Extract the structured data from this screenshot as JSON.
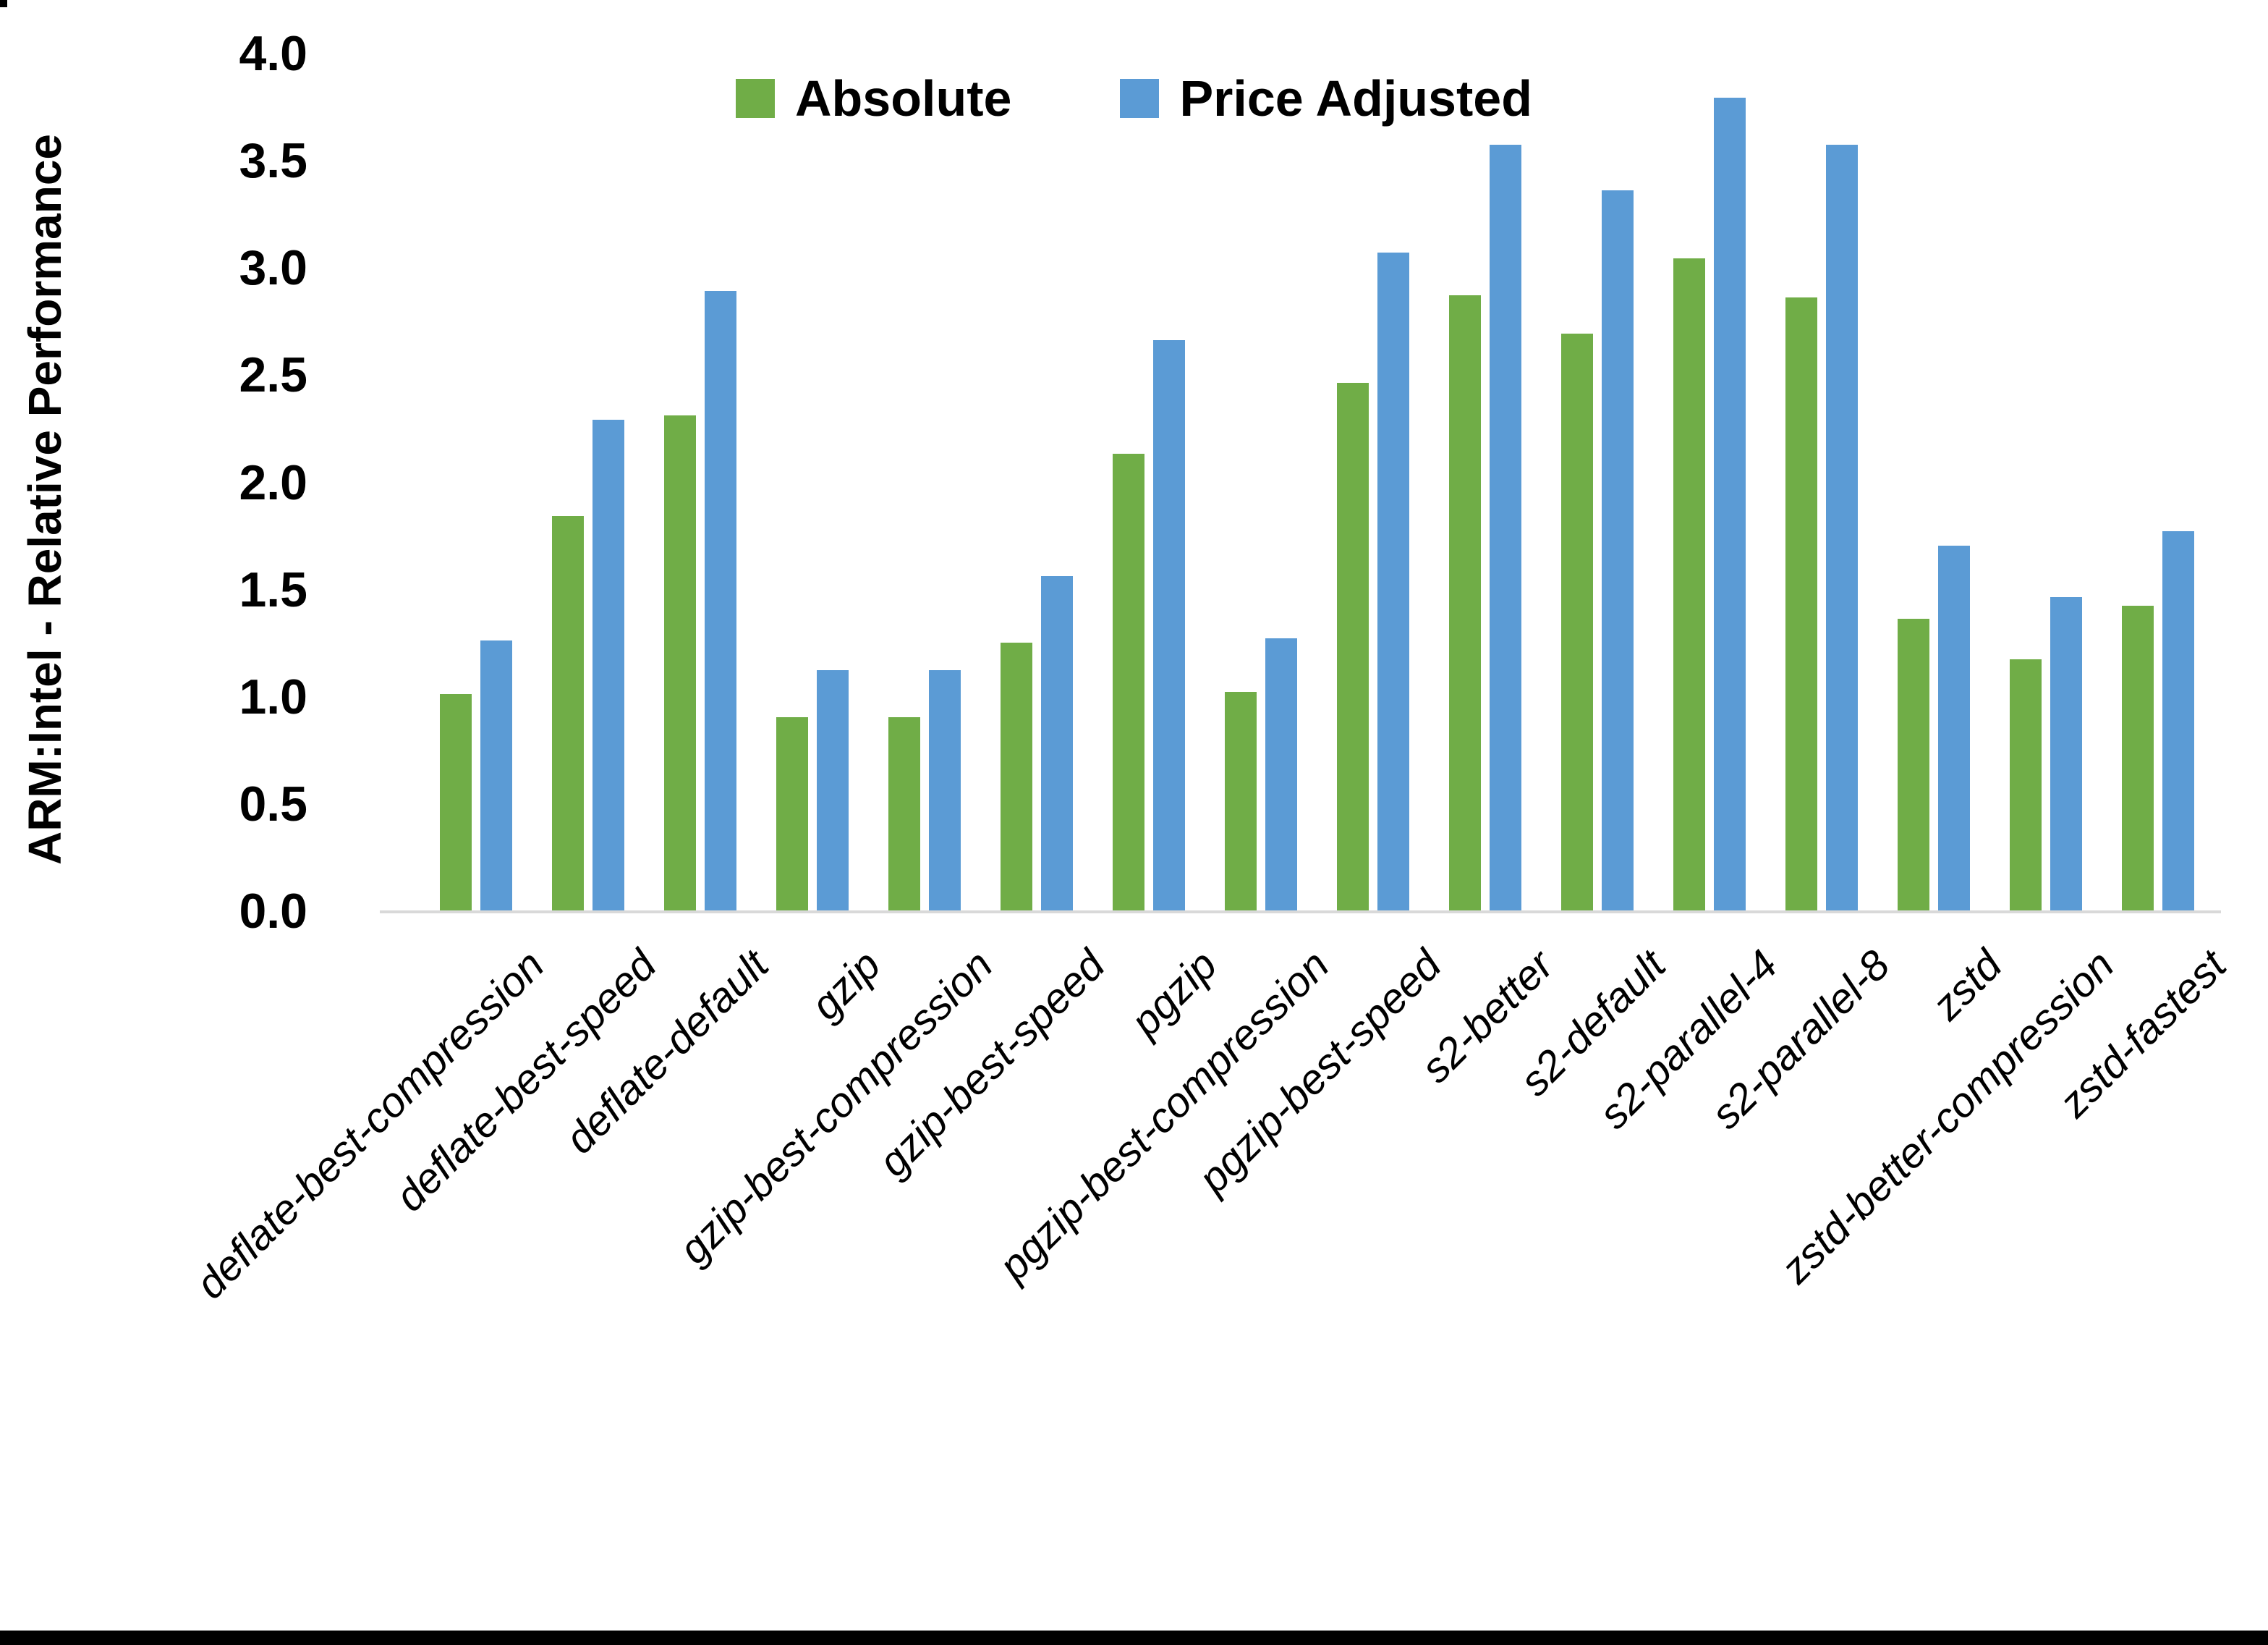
{
  "chart_data": {
    "type": "bar",
    "title": "",
    "ylabel": "ARM:Intel - Relative Performance",
    "xlabel": "",
    "ylim": [
      0.0,
      4.0
    ],
    "ytick_step": 0.5,
    "yticks": [
      "0.0",
      "0.5",
      "1.0",
      "1.5",
      "2.0",
      "2.5",
      "3.0",
      "3.5",
      "4.0"
    ],
    "grid": false,
    "legend_position": "top-center",
    "categories": [
      "deflate-best-compression",
      "deflate-best-speed",
      "deflate-default",
      "gzip",
      "gzip-best-compression",
      "gzip-best-speed",
      "pgzip",
      "pgzip-best-compression",
      "pgzip-best-speed",
      "s2-better",
      "s2-default",
      "s2-parallel-4",
      "s2-parallel-8",
      "zstd",
      "zstd-better-compression",
      "zstd-fastest"
    ],
    "series": [
      {
        "name": "Absolute",
        "color": "#70AD47",
        "values": [
          1.01,
          1.84,
          2.31,
          0.9,
          0.9,
          1.25,
          2.13,
          1.02,
          2.46,
          2.87,
          2.69,
          3.04,
          2.86,
          1.36,
          1.17,
          1.42
        ]
      },
      {
        "name": "Price Adjusted",
        "color": "#5B9BD5",
        "values": [
          1.26,
          2.29,
          2.89,
          1.12,
          1.12,
          1.56,
          2.66,
          1.27,
          3.07,
          3.57,
          3.36,
          3.79,
          3.57,
          1.7,
          1.46,
          1.77
        ]
      }
    ]
  },
  "colors": {
    "absolute": "#70AD47",
    "price_adjusted": "#5B9BD5",
    "axis_line": "#D9D9D9",
    "text": "#000000",
    "bottom_border": "#000000"
  }
}
